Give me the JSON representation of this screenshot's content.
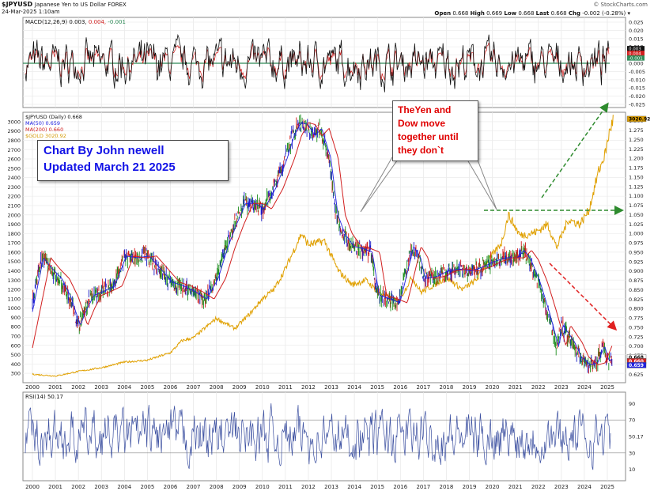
{
  "header": {
    "symbol": "$JPYUSD",
    "name": "Japanese Yen to US Dollar FOREX",
    "date": "24-Mar-2025 1:10am",
    "copyright": "© StockCharts.com",
    "ohlc": {
      "open_label": "Open",
      "open": "0.668",
      "high_label": "High",
      "high": "0.669",
      "low_label": "Low",
      "low": "0.668",
      "last_label": "Last",
      "last": "0.668",
      "chg_label": "Chg",
      "chg": "-0.002 (-0.28%)"
    }
  },
  "legends": {
    "macd": {
      "label": "MACD(12,26,9) 0.003,",
      "v1": "0.004,",
      "v2": "-0.001"
    },
    "price": {
      "label": "$JPYUSD (Daily) 0.668",
      "ma50": "MA(50) 0.659",
      "ma200": "MA(200) 0.660",
      "gold": "$GOLD 3020.92"
    },
    "rsi": {
      "label": "RSI(14) 50.17"
    }
  },
  "annotations": {
    "box1": [
      "Chart By John newell",
      "Updated March 21 2025"
    ],
    "box2": [
      "TheYen and",
      "Dow move",
      "together until",
      "they don`t"
    ]
  },
  "chart_data": [
    {
      "type": "line",
      "title": "MACD(12,26,9)",
      "y_ticks": [
        "0.025",
        "0.020",
        "0.015",
        "0.010",
        "0.005",
        "0.000",
        "-0.005",
        "-0.010",
        "-0.015",
        "-0.020",
        "-0.025"
      ],
      "ylim": [
        -0.025,
        0.025
      ],
      "series": [
        {
          "name": "MACD(12,26,9)",
          "value": 0.003,
          "color": "#000000"
        },
        {
          "name": "Signal",
          "value": 0.004,
          "color": "#d11f1f"
        },
        {
          "name": "Histogram",
          "value": -0.001,
          "color": "#2e8b57"
        }
      ],
      "last_labels": [
        "0.003",
        "0.004",
        "-0.001"
      ]
    },
    {
      "type": "line",
      "title": "$JPYUSD (Daily)",
      "x_ticks": [
        "2000",
        "2001",
        "2002",
        "2003",
        "2004",
        "2005",
        "2006",
        "2007",
        "2008",
        "2009",
        "2010",
        "2011",
        "2012",
        "2013",
        "2014",
        "2015",
        "2016",
        "2017",
        "2018",
        "2019",
        "2020",
        "2021",
        "2022",
        "2023",
        "2024",
        "2025"
      ],
      "left_axis": {
        "label": "$GOLD",
        "ticks": [
          "3000",
          "2900",
          "2800",
          "2700",
          "2600",
          "2500",
          "2400",
          "2300",
          "2200",
          "2100",
          "2000",
          "1900",
          "1800",
          "1700",
          "1600",
          "1500",
          "1400",
          "1300",
          "1200",
          "1100",
          "1000",
          "900",
          "800",
          "700",
          "600",
          "500",
          "400",
          "300"
        ],
        "ylim": [
          250,
          3050
        ]
      },
      "right_axis": {
        "label": "$JPYUSD",
        "ticks": [
          "1.300",
          "1.275",
          "1.250",
          "1.225",
          "1.200",
          "1.175",
          "1.150",
          "1.125",
          "1.100",
          "1.075",
          "1.050",
          "1.025",
          "1.000",
          "0.975",
          "0.950",
          "0.925",
          "0.900",
          "0.875",
          "0.850",
          "0.825",
          "0.800",
          "0.775",
          "0.750",
          "0.725",
          "0.700",
          "0.675",
          "0.650",
          "0.625"
        ],
        "ylim": [
          0.615,
          1.31
        ]
      },
      "jpyusd": {
        "x": [
          2000.0,
          2000.4,
          2000.8,
          2001.2,
          2001.6,
          2002.0,
          2002.3,
          2002.6,
          2003.0,
          2003.5,
          2004.0,
          2004.5,
          2005.0,
          2005.5,
          2006.0,
          2006.5,
          2007.0,
          2007.5,
          2008.0,
          2008.4,
          2008.8,
          2009.2,
          2009.6,
          2010.0,
          2010.5,
          2011.0,
          2011.3,
          2011.6,
          2011.9,
          2012.2,
          2012.5,
          2012.9,
          2013.2,
          2013.5,
          2013.9,
          2014.3,
          2014.7,
          2015.0,
          2015.5,
          2015.9,
          2016.2,
          2016.5,
          2016.8,
          2017.0,
          2017.5,
          2018.0,
          2018.5,
          2019.0,
          2019.5,
          2020.0,
          2020.5,
          2021.0,
          2021.3,
          2021.6,
          2022.0,
          2022.4,
          2022.8,
          2023.0,
          2023.5,
          2023.8,
          2024.2,
          2024.5,
          2024.8,
          2025.0,
          2025.2
        ],
        "y": [
          0.815,
          0.935,
          0.905,
          0.88,
          0.83,
          0.755,
          0.8,
          0.835,
          0.845,
          0.86,
          0.94,
          0.935,
          0.94,
          0.905,
          0.87,
          0.86,
          0.845,
          0.825,
          0.88,
          0.96,
          1.025,
          1.08,
          1.08,
          1.065,
          1.12,
          1.2,
          1.26,
          1.295,
          1.29,
          1.26,
          1.28,
          1.2,
          1.05,
          1.0,
          0.965,
          0.96,
          0.95,
          0.835,
          0.825,
          0.815,
          0.89,
          0.965,
          0.935,
          0.88,
          0.885,
          0.9,
          0.905,
          0.9,
          0.91,
          0.925,
          0.935,
          0.935,
          0.955,
          0.93,
          0.87,
          0.79,
          0.7,
          0.755,
          0.71,
          0.67,
          0.65,
          0.655,
          0.7,
          0.66,
          0.668
        ]
      },
      "ma50": {
        "name": "MA(50)",
        "value": 0.659,
        "color": "#2020e0"
      },
      "ma200": {
        "name": "MA(200)",
        "value": 0.66,
        "color": "#d11f1f"
      },
      "gold": {
        "name": "$GOLD",
        "value": 3020.92,
        "color": "#e0a000",
        "x": [
          2000.0,
          2001.0,
          2002.0,
          2003.0,
          2004.0,
          2005.0,
          2006.0,
          2006.5,
          2007.0,
          2008.0,
          2008.8,
          2009.5,
          2010.0,
          2010.5,
          2011.0,
          2011.7,
          2012.0,
          2012.7,
          2013.3,
          2013.9,
          2014.5,
          2015.0,
          2015.9,
          2016.5,
          2016.9,
          2017.5,
          2018.0,
          2018.7,
          2019.3,
          2019.8,
          2020.4,
          2020.7,
          2021.2,
          2021.7,
          2022.0,
          2022.4,
          2022.8,
          2023.3,
          2023.8,
          2024.2,
          2024.6,
          2024.9,
          2025.1,
          2025.25
        ],
        "y": [
          290,
          270,
          320,
          360,
          420,
          440,
          520,
          650,
          680,
          890,
          780,
          950,
          1100,
          1200,
          1420,
          1800,
          1680,
          1720,
          1400,
          1250,
          1300,
          1180,
          1060,
          1330,
          1170,
          1250,
          1330,
          1200,
          1300,
          1500,
          1700,
          2000,
          1780,
          1800,
          1830,
          1900,
          1650,
          1950,
          1900,
          2050,
          2450,
          2650,
          2900,
          3020
        ]
      },
      "last_labels": [
        "0.668",
        "0.660",
        "0.659",
        "3020.92"
      ]
    },
    {
      "type": "line",
      "title": "RSI(14)",
      "y_ticks": [
        "90",
        "70",
        "50.17",
        "30",
        "10"
      ],
      "ylim": [
        0,
        100
      ],
      "series": [
        {
          "name": "RSI(14)",
          "value": 50.17,
          "color": "#3b4fa0"
        }
      ],
      "x_ticks": [
        "2000",
        "2001",
        "2002",
        "2003",
        "2004",
        "2005",
        "2006",
        "2007",
        "2008",
        "2009",
        "2010",
        "2011",
        "2012",
        "2013",
        "2014",
        "2015",
        "2016",
        "2017",
        "2018",
        "2019",
        "2020",
        "2021",
        "2022",
        "2023",
        "2024",
        "2025"
      ]
    }
  ]
}
